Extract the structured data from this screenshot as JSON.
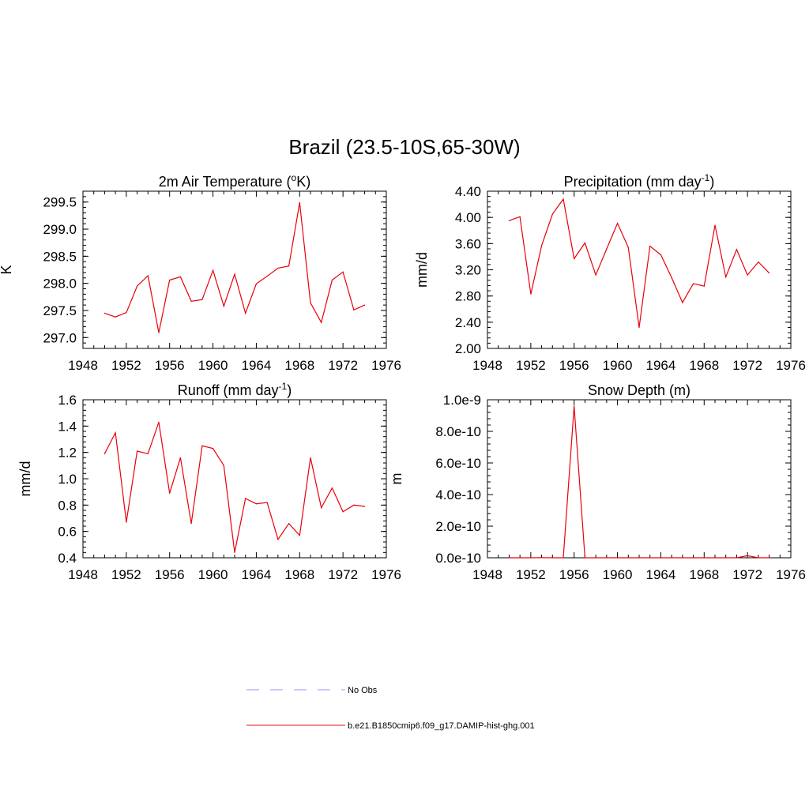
{
  "title": "Brazil (23.5-10S,65-30W)",
  "legend": {
    "entries": [
      {
        "label": "No Obs",
        "style": "dashed",
        "color": "#a6a6f0"
      },
      {
        "label": "b.e21.B1850cmip6.f09_g17.DAMIP-hist-ghg.001",
        "style": "solid",
        "color": "#e8404a"
      }
    ]
  },
  "chart_data": [
    {
      "type": "line",
      "title": "2m Air Temperature (°K)",
      "title_parts": {
        "pre": "2m Air Temperature (",
        "sup": "o",
        "post": "K)"
      },
      "ylabel": "K",
      "xlim": [
        1948,
        1976
      ],
      "ylim": [
        296.8,
        299.7
      ],
      "xticks": [
        1948,
        1952,
        1956,
        1960,
        1964,
        1968,
        1972,
        1976
      ],
      "yticks": [
        297.0,
        297.5,
        298.0,
        298.5,
        299.0,
        299.5
      ],
      "ytick_labels": [
        "297.0",
        "297.5",
        "298.0",
        "298.5",
        "299.0",
        "299.5"
      ],
      "series": [
        {
          "color": "#e8000b",
          "x": [
            1950,
            1951,
            1952,
            1953,
            1954,
            1955,
            1956,
            1957,
            1958,
            1959,
            1960,
            1961,
            1962,
            1963,
            1964,
            1965,
            1966,
            1967,
            1968,
            1969,
            1970,
            1971,
            1972,
            1973,
            1974
          ],
          "values": [
            297.45,
            297.38,
            297.46,
            297.95,
            298.14,
            297.09,
            298.06,
            298.12,
            297.67,
            297.7,
            298.24,
            297.58,
            298.17,
            297.45,
            297.99,
            298.13,
            298.28,
            298.32,
            299.49,
            297.64,
            297.28,
            298.06,
            298.21,
            297.51,
            297.6
          ]
        }
      ]
    },
    {
      "type": "line",
      "title": "Precipitation (mm day-1)",
      "title_parts": {
        "pre": "Precipitation (mm day",
        "sup": "-1",
        "post": ")"
      },
      "ylabel": "mm/d",
      "xlim": [
        1948,
        1976
      ],
      "ylim": [
        2.0,
        4.4
      ],
      "xticks": [
        1948,
        1952,
        1956,
        1960,
        1964,
        1968,
        1972,
        1976
      ],
      "yticks": [
        2.0,
        2.4,
        2.8,
        3.2,
        3.6,
        4.0,
        4.4
      ],
      "ytick_labels": [
        "2.00",
        "2.40",
        "2.80",
        "3.20",
        "3.60",
        "4.00",
        "4.40"
      ],
      "series": [
        {
          "color": "#e8000b",
          "x": [
            1950,
            1951,
            1952,
            1953,
            1954,
            1955,
            1956,
            1957,
            1958,
            1959,
            1960,
            1961,
            1962,
            1963,
            1964,
            1965,
            1966,
            1967,
            1968,
            1969,
            1970,
            1971,
            1972,
            1973,
            1974
          ],
          "values": [
            3.95,
            4.01,
            2.83,
            3.57,
            4.05,
            4.28,
            3.37,
            3.61,
            3.12,
            3.52,
            3.91,
            3.54,
            2.32,
            3.56,
            3.43,
            3.08,
            2.7,
            2.99,
            2.95,
            3.88,
            3.09,
            3.51,
            3.12,
            3.32,
            3.15
          ]
        }
      ]
    },
    {
      "type": "line",
      "title": "Runoff (mm day-1)",
      "title_parts": {
        "pre": "Runoff (mm day",
        "sup": "-1",
        "post": ")"
      },
      "ylabel": "mm/d",
      "xlim": [
        1948,
        1976
      ],
      "ylim": [
        0.4,
        1.6
      ],
      "xticks": [
        1948,
        1952,
        1956,
        1960,
        1964,
        1968,
        1972,
        1976
      ],
      "yticks": [
        0.4,
        0.6,
        0.8,
        1.0,
        1.2,
        1.4,
        1.6
      ],
      "ytick_labels": [
        "0.4",
        "0.6",
        "0.8",
        "1.0",
        "1.2",
        "1.4",
        "1.6"
      ],
      "series": [
        {
          "color": "#e8000b",
          "x": [
            1950,
            1951,
            1952,
            1953,
            1954,
            1955,
            1956,
            1957,
            1958,
            1959,
            1960,
            1961,
            1962,
            1963,
            1964,
            1965,
            1966,
            1967,
            1968,
            1969,
            1970,
            1971,
            1972,
            1973,
            1974
          ],
          "values": [
            1.19,
            1.35,
            0.67,
            1.21,
            1.19,
            1.43,
            0.89,
            1.16,
            0.66,
            1.25,
            1.23,
            1.1,
            0.44,
            0.85,
            0.81,
            0.82,
            0.54,
            0.66,
            0.57,
            1.16,
            0.78,
            0.93,
            0.75,
            0.8,
            0.79
          ]
        }
      ]
    },
    {
      "type": "line",
      "title": "Snow Depth (m)",
      "title_parts": {
        "pre": "Snow Depth (m)",
        "sup": "",
        "post": ""
      },
      "ylabel": "m",
      "xlim": [
        1948,
        1976
      ],
      "ylim": [
        0,
        1e-09
      ],
      "xticks": [
        1948,
        1952,
        1956,
        1960,
        1964,
        1968,
        1972,
        1976
      ],
      "yticks": [
        0,
        2e-10,
        4e-10,
        6e-10,
        8e-10,
        1e-09
      ],
      "ytick_labels": [
        "0.0e-10",
        "2.0e-10",
        "4.0e-10",
        "6.0e-10",
        "8.0e-10",
        "1.0e-9"
      ],
      "series": [
        {
          "color": "#e8000b",
          "x": [
            1950,
            1951,
            1952,
            1953,
            1954,
            1955,
            1956,
            1957,
            1958,
            1959,
            1960,
            1961,
            1962,
            1963,
            1964,
            1965,
            1966,
            1967,
            1968,
            1969,
            1970,
            1971,
            1972,
            1973,
            1974
          ],
          "values": [
            0,
            0,
            0,
            1e-12,
            0,
            0,
            9.6e-10,
            0,
            0,
            0,
            0,
            0,
            0,
            0,
            0,
            0,
            0,
            0,
            0,
            0,
            0,
            0,
            1.3e-11,
            0,
            0
          ]
        }
      ]
    }
  ]
}
